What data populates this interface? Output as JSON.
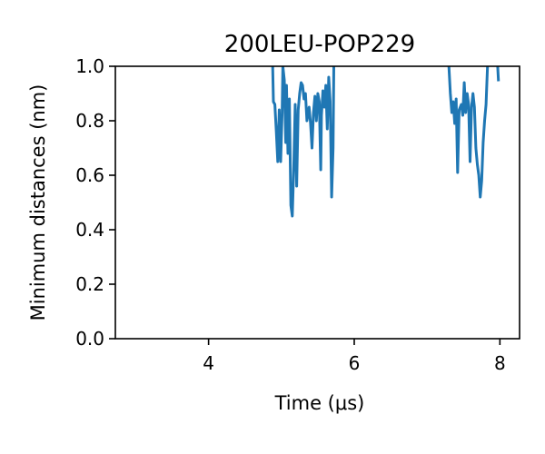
{
  "chart_data": {
    "type": "line",
    "title": "200LEU-POP229",
    "xlabel": "Time (μs)",
    "ylabel": "Minimum distances (nm)",
    "xlim": [
      2.72,
      8.27
    ],
    "ylim": [
      0.0,
      1.0
    ],
    "xticks": [
      4,
      6,
      8
    ],
    "xtick_labels": [
      "4",
      "6",
      "8"
    ],
    "yticks": [
      0.0,
      0.2,
      0.4,
      0.6,
      0.8,
      1.0
    ],
    "ytick_labels": [
      "0.0",
      "0.2",
      "0.4",
      "0.6",
      "0.8",
      "1.0"
    ],
    "grid": false,
    "series": [
      {
        "color": "#1f77b4",
        "segments": [
          [
            [
              4.88,
              1.0
            ],
            [
              4.89,
              0.87
            ],
            [
              4.91,
              0.86
            ],
            [
              4.93,
              0.76
            ],
            [
              4.95,
              0.65
            ],
            [
              4.97,
              0.84
            ],
            [
              4.99,
              0.65
            ],
            [
              5.01,
              0.83
            ],
            [
              5.02,
              1.0
            ],
            [
              5.04,
              0.95
            ],
            [
              5.06,
              0.72
            ],
            [
              5.07,
              0.93
            ],
            [
              5.09,
              0.68
            ],
            [
              5.11,
              0.88
            ],
            [
              5.13,
              0.49
            ],
            [
              5.15,
              0.45
            ],
            [
              5.17,
              0.63
            ],
            [
              5.19,
              0.86
            ],
            [
              5.21,
              0.56
            ],
            [
              5.23,
              0.84
            ],
            [
              5.25,
              0.9
            ],
            [
              5.27,
              0.94
            ],
            [
              5.29,
              0.93
            ],
            [
              5.31,
              0.88
            ],
            [
              5.33,
              0.9
            ],
            [
              5.35,
              0.8
            ],
            [
              5.38,
              0.85
            ],
            [
              5.4,
              0.79
            ],
            [
              5.42,
              0.7
            ],
            [
              5.44,
              0.83
            ],
            [
              5.46,
              0.89
            ],
            [
              5.48,
              0.8
            ],
            [
              5.5,
              0.9
            ],
            [
              5.52,
              0.87
            ],
            [
              5.54,
              0.62
            ],
            [
              5.55,
              0.82
            ],
            [
              5.57,
              0.91
            ],
            [
              5.59,
              0.85
            ],
            [
              5.61,
              0.93
            ],
            [
              5.63,
              0.77
            ],
            [
              5.65,
              0.96
            ],
            [
              5.67,
              0.87
            ],
            [
              5.69,
              0.52
            ],
            [
              5.71,
              0.7
            ],
            [
              5.72,
              1.0
            ]
          ],
          [
            [
              7.3,
              1.0
            ],
            [
              7.32,
              0.9
            ],
            [
              7.34,
              0.83
            ],
            [
              7.36,
              0.87
            ],
            [
              7.38,
              0.79
            ],
            [
              7.4,
              0.88
            ],
            [
              7.42,
              0.61
            ],
            [
              7.44,
              0.84
            ],
            [
              7.47,
              0.86
            ],
            [
              7.49,
              0.82
            ],
            [
              7.51,
              0.94
            ],
            [
              7.53,
              0.83
            ],
            [
              7.55,
              0.9
            ],
            [
              7.57,
              0.86
            ],
            [
              7.59,
              0.65
            ],
            [
              7.61,
              0.85
            ],
            [
              7.63,
              0.9
            ],
            [
              7.65,
              0.85
            ],
            [
              7.67,
              0.7
            ],
            [
              7.69,
              0.64
            ],
            [
              7.71,
              0.6
            ],
            [
              7.73,
              0.52
            ],
            [
              7.75,
              0.58
            ],
            [
              7.77,
              0.72
            ],
            [
              7.79,
              0.8
            ],
            [
              7.81,
              0.86
            ],
            [
              7.83,
              1.0
            ]
          ],
          [
            [
              7.97,
              1.0
            ],
            [
              7.98,
              0.95
            ]
          ]
        ]
      }
    ]
  }
}
